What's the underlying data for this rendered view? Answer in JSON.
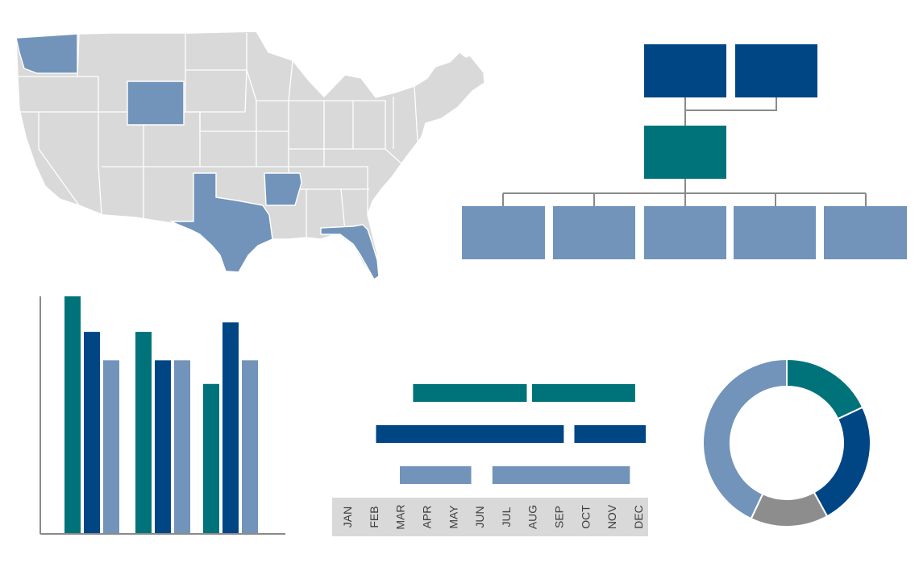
{
  "colors": {
    "teal": "#00737a",
    "navy": "#004684",
    "light_blue": "#7294ba",
    "gray": "#8d8d8d",
    "map_gray": "#d9d9d9",
    "line_gray": "#8a8a8a",
    "axis_band": "#d9d9d9"
  },
  "map": {
    "highlighted_states": [
      "WA",
      "WY",
      "TX",
      "AR",
      "FL"
    ]
  },
  "org_chart": {
    "top_count": 2,
    "middle_count": 1,
    "bottom_count": 5
  },
  "chart_data": [
    {
      "type": "bar",
      "categories": [
        "",
        "",
        ""
      ],
      "series": [
        {
          "color": "teal",
          "values": [
            100,
            85,
            63
          ]
        },
        {
          "color": "navy",
          "values": [
            85,
            73,
            89
          ]
        },
        {
          "color": "light_blue",
          "values": [
            73,
            73,
            73
          ]
        }
      ],
      "ylim": [
        0,
        100
      ],
      "grid": false
    },
    {
      "type": "bar",
      "orientation": "horizontal-timeline",
      "months": [
        "JAN",
        "FEB",
        "MAR",
        "APR",
        "MAY",
        "JUN",
        "JUL",
        "AUG",
        "SEP",
        "OCT",
        "NOV",
        "DEC"
      ],
      "tasks": [
        {
          "row": 0,
          "start": 3.0,
          "end": 7.3,
          "color": "teal"
        },
        {
          "row": 0,
          "start": 7.5,
          "end": 11.4,
          "color": "teal"
        },
        {
          "row": 1,
          "start": 1.6,
          "end": 8.7,
          "color": "navy"
        },
        {
          "row": 1,
          "start": 9.1,
          "end": 11.8,
          "color": "navy"
        },
        {
          "row": 2,
          "start": 2.5,
          "end": 5.2,
          "color": "light_blue"
        },
        {
          "row": 2,
          "start": 6.0,
          "end": 11.2,
          "color": "light_blue"
        }
      ]
    },
    {
      "type": "pie",
      "style": "donut",
      "slices": [
        {
          "value": 18,
          "color": "teal"
        },
        {
          "value": 24,
          "color": "navy"
        },
        {
          "value": 15,
          "color": "gray"
        },
        {
          "value": 43,
          "color": "light_blue"
        }
      ]
    }
  ]
}
